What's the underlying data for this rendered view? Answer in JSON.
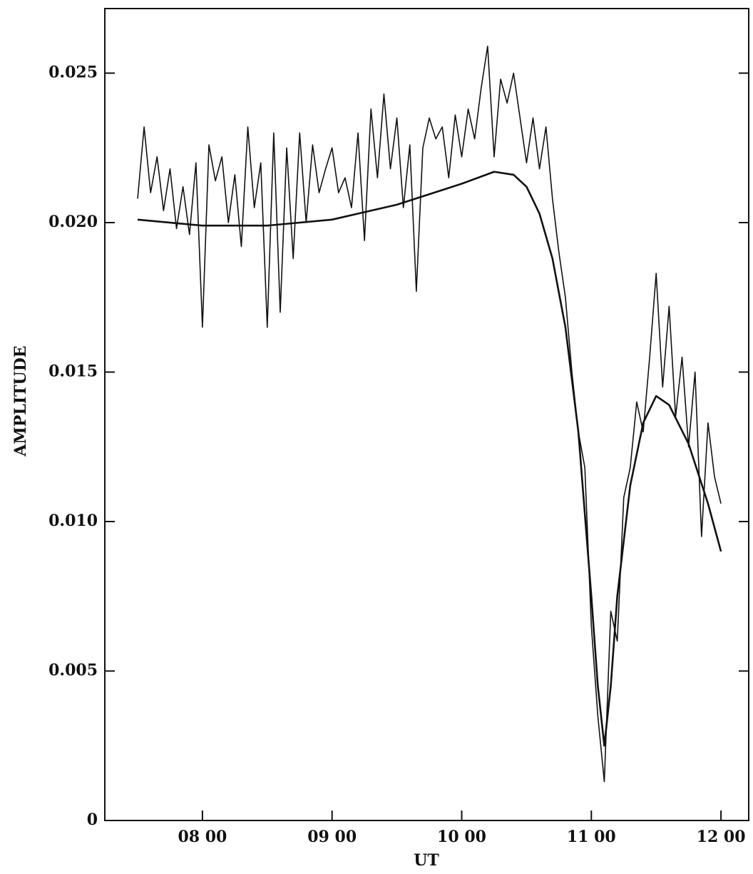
{
  "chart_data": {
    "type": "line",
    "x_label": "UT",
    "y_label": "AMPLITUDE",
    "xlim": [
      7.247,
      12.214
    ],
    "ylim": [
      0,
      0.02716
    ],
    "xticks": [
      {
        "value": 8,
        "label": "08 00"
      },
      {
        "value": 9,
        "label": "09 00"
      },
      {
        "value": 10,
        "label": "10 00"
      },
      {
        "value": 11,
        "label": "11 00"
      },
      {
        "value": 12,
        "label": "12 00"
      }
    ],
    "yticks": [
      0,
      0.005,
      {
        "value": 0.01,
        "label": "0.010"
      },
      0.015,
      {
        "value": 0.02,
        "label": "0.020"
      },
      0.025
    ],
    "series": [
      {
        "color": "#111111",
        "width": 1.6,
        "x": [
          7.5,
          7.55,
          7.6,
          7.65,
          7.7,
          7.75,
          7.8,
          7.85,
          7.9,
          7.95,
          8,
          8.05,
          8.1,
          8.15,
          8.2,
          8.25,
          8.3,
          8.35,
          8.4,
          8.45,
          8.5,
          8.55,
          8.6,
          8.65,
          8.7,
          8.75,
          8.8,
          8.85,
          8.9,
          8.95,
          9,
          9.05,
          9.1,
          9.15,
          9.2,
          9.25,
          9.3,
          9.35,
          9.4,
          9.45,
          9.5,
          9.55,
          9.6,
          9.65,
          9.7,
          9.75,
          9.8,
          9.85,
          9.9,
          9.95,
          10,
          10.05,
          10.1,
          10.15,
          10.2,
          10.25,
          10.3,
          10.35,
          10.4,
          10.45,
          10.5,
          10.55,
          10.6,
          10.65,
          10.7,
          10.75,
          10.8,
          10.85,
          10.9,
          10.95,
          11,
          11.05,
          11.1,
          11.15,
          11.2,
          11.25,
          11.3,
          11.35,
          11.4,
          11.45,
          11.5,
          11.55,
          11.6,
          11.65,
          11.7,
          11.75,
          11.8,
          11.85,
          11.9,
          11.95,
          12
        ],
        "values": [
          0.0208,
          0.0232,
          0.021,
          0.0222,
          0.0204,
          0.0218,
          0.0198,
          0.0212,
          0.0196,
          0.022,
          0.0165,
          0.0226,
          0.0214,
          0.0222,
          0.02,
          0.0216,
          0.0192,
          0.0232,
          0.0205,
          0.022,
          0.0165,
          0.023,
          0.017,
          0.0225,
          0.0188,
          0.023,
          0.02,
          0.0226,
          0.021,
          0.0218,
          0.0225,
          0.021,
          0.0215,
          0.0205,
          0.023,
          0.0194,
          0.0238,
          0.0215,
          0.0243,
          0.0218,
          0.0235,
          0.0205,
          0.0226,
          0.0177,
          0.0225,
          0.0235,
          0.0228,
          0.0232,
          0.0215,
          0.0236,
          0.0222,
          0.0238,
          0.0228,
          0.0245,
          0.0259,
          0.0222,
          0.0248,
          0.024,
          0.025,
          0.0235,
          0.022,
          0.0235,
          0.0218,
          0.0232,
          0.0208,
          0.019,
          0.0175,
          0.015,
          0.013,
          0.0118,
          0.0065,
          0.0035,
          0.0013,
          0.007,
          0.006,
          0.0108,
          0.0118,
          0.014,
          0.013,
          0.0155,
          0.0183,
          0.0145,
          0.0172,
          0.0135,
          0.0155,
          0.0125,
          0.015,
          0.0095,
          0.0133,
          0.0115,
          0.0106
        ]
      },
      {
        "color": "#111111",
        "width": 2.6,
        "x": [
          7.5,
          8,
          8.5,
          9,
          9.5,
          10,
          10.25,
          10.4,
          10.5,
          10.6,
          10.7,
          10.8,
          10.9,
          11,
          11.05,
          11.1,
          11.15,
          11.2,
          11.3,
          11.4,
          11.5,
          11.6,
          11.75,
          11.9,
          12
        ],
        "values": [
          0.0201,
          0.0199,
          0.0199,
          0.0201,
          0.0206,
          0.0213,
          0.0217,
          0.0216,
          0.0212,
          0.0203,
          0.0188,
          0.0165,
          0.013,
          0.0075,
          0.0045,
          0.0025,
          0.0045,
          0.0075,
          0.0112,
          0.0133,
          0.0142,
          0.0139,
          0.0126,
          0.0106,
          0.009
        ]
      }
    ]
  }
}
